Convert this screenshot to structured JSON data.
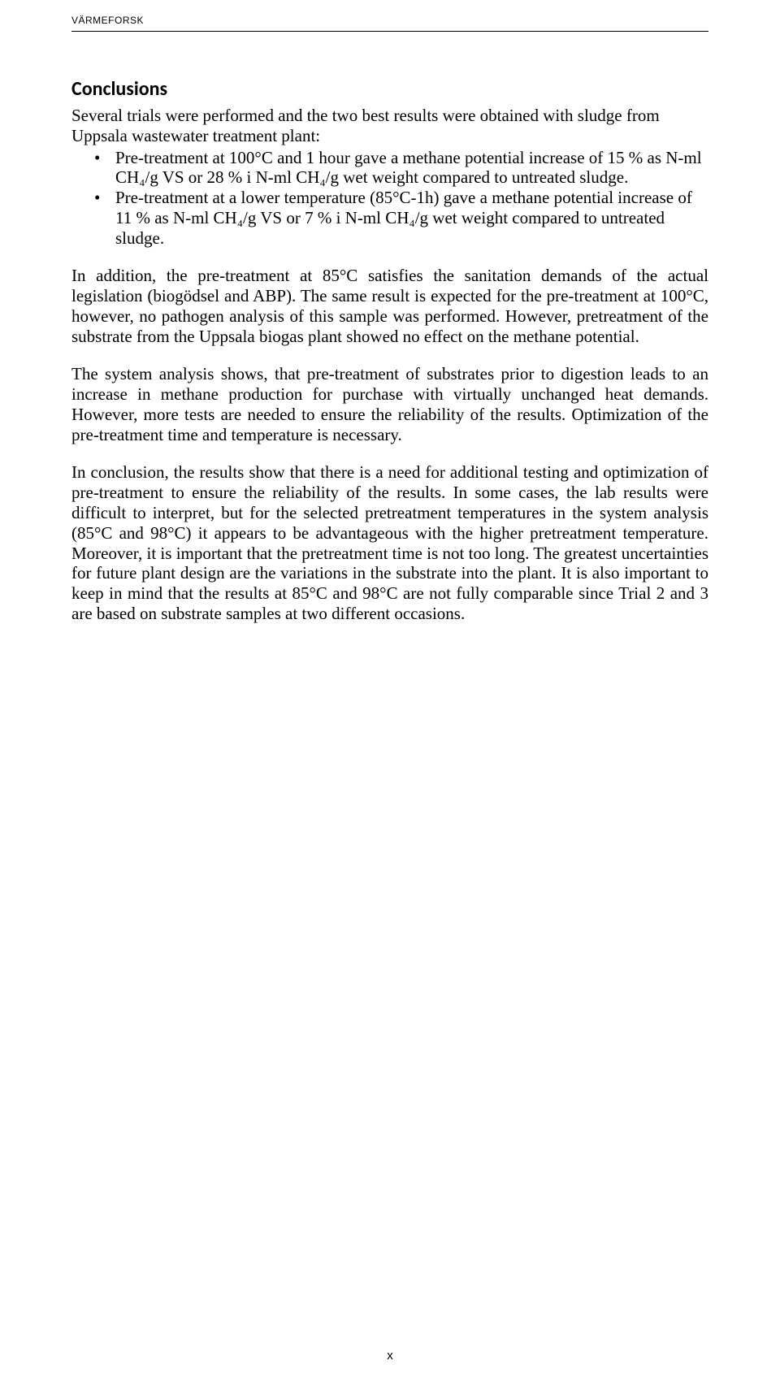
{
  "header": "VÄRMEFORSK",
  "title": "Conclusions",
  "intro": "Several trials were performed and the two best results were obtained with sludge from Uppsala wastewater treatment plant:",
  "bullets": [
    "Pre-treatment at 100°C and 1 hour gave a methane potential increase of 15 % as N-ml CH₄/g VS or 28 % i N-ml CH₄/g wet weight compared to untreated sludge.",
    "Pre-treatment at a lower temperature (85°C-1h) gave a methane potential increase of 11 % as N-ml CH₄/g VS or 7 % i N-ml CH₄/g wet weight compared to untreated sludge."
  ],
  "paragraphs": [
    "In addition, the pre-treatment at 85°C satisfies the sanitation demands of the actual legislation (biogödsel and ABP). The same result is expected for the pre-treatment at 100°C, however, no pathogen analysis of this sample was performed. However, pretreatment of the substrate from the Uppsala biogas plant showed no effect on the methane potential.",
    "The system analysis shows, that pre-treatment of substrates prior to digestion leads to an increase in methane production for purchase with virtually unchanged heat demands. However, more tests are needed to ensure the reliability of the results. Optimization of the pre-treatment time and temperature is necessary.",
    "In conclusion, the results show that there is a need for additional testing and optimization of pre-treatment to ensure the reliability of the results. In some cases, the lab results were difficult to interpret, but for the selected pretreatment temperatures in the system analysis (85°C and 98°C) it appears to be advantageous with the higher pretreatment temperature. Moreover, it is important that the pretreatment time is not too long. The greatest uncertainties for future plant design are the variations in the substrate into the plant. It is also important to keep in mind that the results at 85°C and 98°C are not fully comparable since Trial 2 and 3 are based on substrate samples at two different occasions."
  ],
  "pageNumber": "x"
}
